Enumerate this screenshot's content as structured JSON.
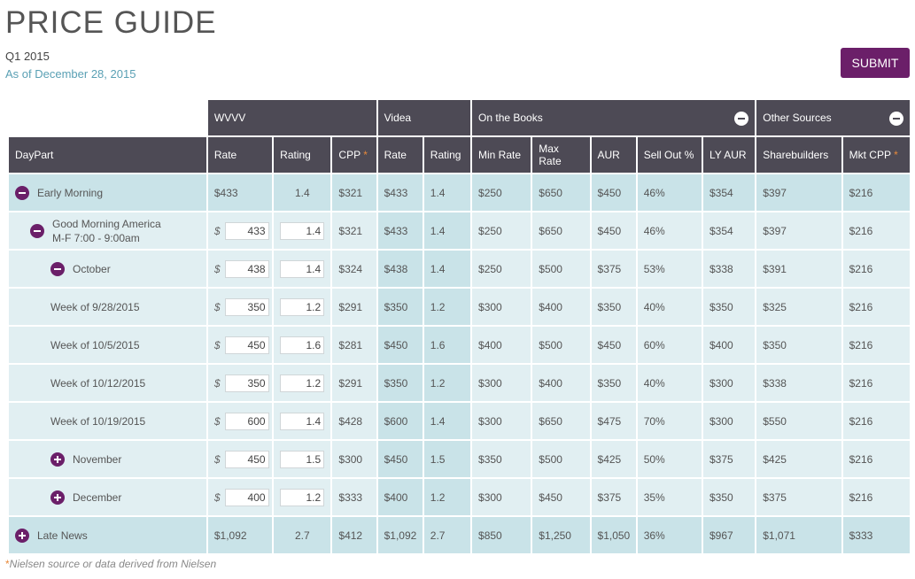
{
  "page": {
    "title": "PRICE GUIDE",
    "quarter": "Q1 2015",
    "as_of": "As of December 28, 2015",
    "submit_label": "SUBMIT",
    "footnote_star": "*",
    "footnote": "Nielsen source or data derived from Nielsen"
  },
  "groups": {
    "wvvv": "WVVV",
    "videa": "Videa",
    "books": "On the Books",
    "other": "Other Sources"
  },
  "headers": {
    "daypart": "DayPart",
    "rate": "Rate",
    "rating": "Rating",
    "cpp": "CPP",
    "vrate": "Rate",
    "vrating": "Rating",
    "min_rate": "Min Rate",
    "max_rate": "Max Rate",
    "aur": "AUR",
    "sellout": "Sell Out %",
    "ly_aur": "LY AUR",
    "sharebuilders": "Sharebuilders",
    "mkt_cpp": "Mkt CPP",
    "star": "*"
  },
  "rows": [
    {
      "label": "Early Morning",
      "rate": "$433",
      "rating": "1.4",
      "cpp": "$321",
      "vrate": "$433",
      "vrating": "1.4",
      "min": "$250",
      "max": "$650",
      "aur": "$450",
      "sell": "46%",
      "ly": "$354",
      "share": "$397",
      "mkt": "$216"
    },
    {
      "label": "Good Morning America",
      "sublabel": "M-F 7:00 - 9:00am",
      "dollar": "$",
      "rate": "433",
      "rating": "1.4",
      "cpp": "$321",
      "vrate": "$433",
      "vrating": "1.4",
      "min": "$250",
      "max": "$650",
      "aur": "$450",
      "sell": "46%",
      "ly": "$354",
      "share": "$397",
      "mkt": "$216"
    },
    {
      "label": "October",
      "dollar": "$",
      "rate": "438",
      "rating": "1.4",
      "cpp": "$324",
      "vrate": "$438",
      "vrating": "1.4",
      "min": "$250",
      "max": "$500",
      "aur": "$375",
      "sell": "53%",
      "ly": "$338",
      "share": "$391",
      "mkt": "$216"
    },
    {
      "label": "Week of 9/28/2015",
      "dollar": "$",
      "rate": "350",
      "rating": "1.2",
      "cpp": "$291",
      "vrate": "$350",
      "vrating": "1.2",
      "min": "$300",
      "max": "$400",
      "aur": "$350",
      "sell": "40%",
      "ly": "$350",
      "share": "$325",
      "mkt": "$216"
    },
    {
      "label": "Week of 10/5/2015",
      "dollar": "$",
      "rate": "450",
      "rating": "1.6",
      "cpp": "$281",
      "vrate": "$450",
      "vrating": "1.6",
      "min": "$400",
      "max": "$500",
      "aur": "$450",
      "sell": "60%",
      "ly": "$400",
      "share": "$350",
      "mkt": "$216"
    },
    {
      "label": "Week of 10/12/2015",
      "dollar": "$",
      "rate": "350",
      "rating": "1.2",
      "cpp": "$291",
      "vrate": "$350",
      "vrating": "1.2",
      "min": "$300",
      "max": "$400",
      "aur": "$350",
      "sell": "40%",
      "ly": "$300",
      "share": "$338",
      "mkt": "$216"
    },
    {
      "label": "Week of 10/19/2015",
      "dollar": "$",
      "rate": "600",
      "rating": "1.4",
      "cpp": "$428",
      "vrate": "$600",
      "vrating": "1.4",
      "min": "$300",
      "max": "$650",
      "aur": "$475",
      "sell": "70%",
      "ly": "$300",
      "share": "$550",
      "mkt": "$216"
    },
    {
      "label": "November",
      "dollar": "$",
      "rate": "450",
      "rating": "1.5",
      "cpp": "$300",
      "vrate": "$450",
      "vrating": "1.5",
      "min": "$350",
      "max": "$500",
      "aur": "$425",
      "sell": "50%",
      "ly": "$375",
      "share": "$425",
      "mkt": "$216"
    },
    {
      "label": "December",
      "dollar": "$",
      "rate": "400",
      "rating": "1.2",
      "cpp": "$333",
      "vrate": "$400",
      "vrating": "1.2",
      "min": "$300",
      "max": "$450",
      "aur": "$375",
      "sell": "35%",
      "ly": "$350",
      "share": "$375",
      "mkt": "$216"
    },
    {
      "label": "Late News",
      "rate": "$1,092",
      "rating": "2.7",
      "cpp": "$412",
      "vrate": "$1,092",
      "vrating": "2.7",
      "min": "$850",
      "max": "$1,250",
      "aur": "$1,050",
      "sell": "36%",
      "ly": "$967",
      "share": "$1,071",
      "mkt": "$333"
    }
  ]
}
